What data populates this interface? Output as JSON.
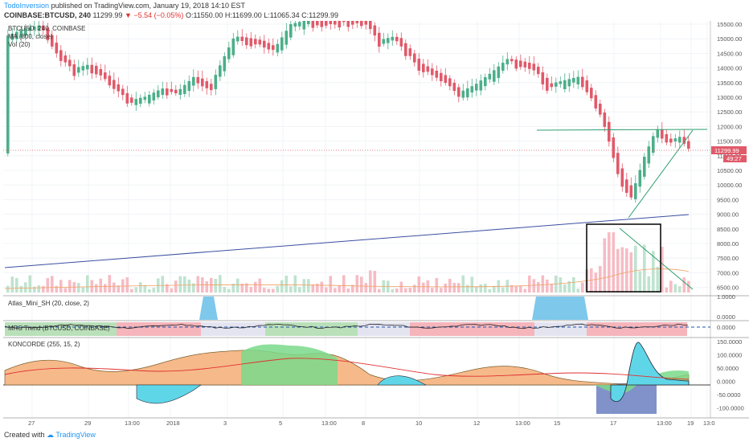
{
  "header": {
    "author": "TodoInversion",
    "published": "published on TradingView.com, January 19, 2018 14:10 EST",
    "symbol": "COINBASE:BTCUSD, 240",
    "last": "11299.99",
    "change": "−5.54 (−0.05%)",
    "open_label": "O:",
    "open": "11550.00",
    "high_label": "H:",
    "high": "11699.00",
    "low_label": "L:",
    "low": "11065.34",
    "close_label": "C:",
    "close": "11299.99"
  },
  "legend": {
    "symbol": "BTCUSD, 240, COINBASE",
    "ma": "MA (800, close)",
    "vol": "Vol (20)"
  },
  "price_tag": "11299.99",
  "price_tag2": "49:27",
  "panes": {
    "atlas": "Atlas_Mini_SH (20, close, 2)",
    "mrs": "MRS Trend (BTCUSD, COINBASE)",
    "koncorde": "KONCORDE (255, 15, 2)"
  },
  "price_axis": [
    "15500.00",
    "15000.00",
    "14500.00",
    "14000.00",
    "13500.00",
    "13000.00",
    "12500.00",
    "12000.00",
    "11500.00",
    "11000.00",
    "10500.00",
    "10000.00",
    "9500.00",
    "9000.00",
    "8500.00",
    "8000.00",
    "7500.00",
    "7000.00",
    "6500.00"
  ],
  "atlas_axis": [
    "1.0000",
    "0.0000"
  ],
  "mrs_axis": [
    "0.0000"
  ],
  "konc_axis": [
    "150.0000",
    "100.0000",
    "50.0000",
    "0.0000",
    "-50.0000",
    "-100.0000"
  ],
  "time_axis": [
    "27",
    "29",
    "13:00",
    "2018",
    "3",
    "5",
    "13:00",
    "8",
    "10",
    "12",
    "13:00",
    "15",
    "17",
    "13:00",
    "19",
    "13:0"
  ],
  "footer": {
    "created": "Created with",
    "brand": "TradingView"
  },
  "colors": {
    "up": "#4caf8a",
    "down": "#e05a6a",
    "ma": "#3b4fa0",
    "trend": "#2e9e6e"
  }
}
